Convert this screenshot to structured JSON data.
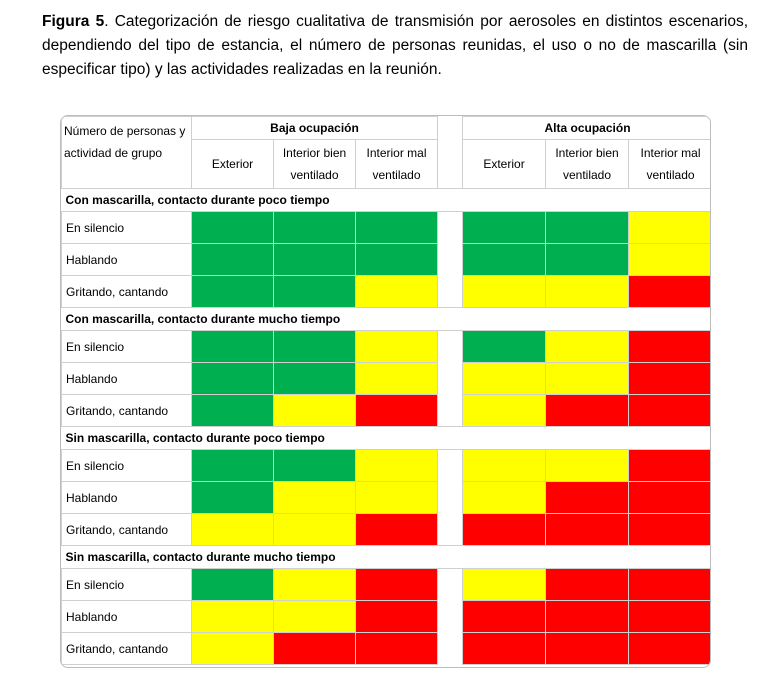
{
  "caption": {
    "label": "Figura 5",
    "text": ". Categorización de riesgo cualitativa de transmisión por aerosoles en distintos escenarios, dependiendo del tipo de estancia, el número de personas reunidas, el uso o no de mascarilla (sin especificar tipo) y las actividades realizadas en la reunión."
  },
  "table": {
    "corner_header": "Número de personas y actividad de grupo",
    "groups": [
      "Baja ocupación",
      "Alta ocupación"
    ],
    "columns": [
      "Exterior",
      "Interior bien ventilado",
      "Interior mal ventilado",
      "Exterior",
      "Interior bien ventilado",
      "Interior mal ventilado"
    ],
    "colors": {
      "green": "#00b050",
      "yellow": "#ffff00",
      "red": "#ff0000"
    },
    "sections": [
      {
        "title": "Con mascarilla, contacto durante poco tiempo",
        "rows": [
          {
            "label": "En silencio",
            "cells": [
              "green",
              "green",
              "green",
              "green",
              "green",
              "yellow"
            ]
          },
          {
            "label": "Hablando",
            "cells": [
              "green",
              "green",
              "green",
              "green",
              "green",
              "yellow"
            ]
          },
          {
            "label": "Gritando, cantando",
            "cells": [
              "green",
              "green",
              "yellow",
              "yellow",
              "yellow",
              "red"
            ]
          }
        ]
      },
      {
        "title": "Con mascarilla, contacto durante mucho tiempo",
        "rows": [
          {
            "label": "En silencio",
            "cells": [
              "green",
              "green",
              "yellow",
              "green",
              "yellow",
              "red"
            ]
          },
          {
            "label": "Hablando",
            "cells": [
              "green",
              "green",
              "yellow",
              "yellow",
              "yellow",
              "red"
            ]
          },
          {
            "label": "Gritando, cantando",
            "cells": [
              "green",
              "yellow",
              "red",
              "yellow",
              "red",
              "red"
            ]
          }
        ]
      },
      {
        "title": "Sin mascarilla, contacto durante poco tiempo",
        "rows": [
          {
            "label": "En silencio",
            "cells": [
              "green",
              "green",
              "yellow",
              "yellow",
              "yellow",
              "red"
            ]
          },
          {
            "label": "Hablando",
            "cells": [
              "green",
              "yellow",
              "yellow",
              "yellow",
              "red",
              "red"
            ]
          },
          {
            "label": "Gritando, cantando",
            "cells": [
              "yellow",
              "yellow",
              "red",
              "red",
              "red",
              "red"
            ]
          }
        ]
      },
      {
        "title": "Sin mascarilla, contacto durante mucho tiempo",
        "rows": [
          {
            "label": "En silencio",
            "cells": [
              "green",
              "yellow",
              "red",
              "yellow",
              "red",
              "red"
            ]
          },
          {
            "label": "Hablando",
            "cells": [
              "yellow",
              "yellow",
              "red",
              "red",
              "red",
              "red"
            ]
          },
          {
            "label": "Gritando, cantando",
            "cells": [
              "yellow",
              "red",
              "red",
              "red",
              "red",
              "red"
            ]
          }
        ]
      }
    ]
  }
}
